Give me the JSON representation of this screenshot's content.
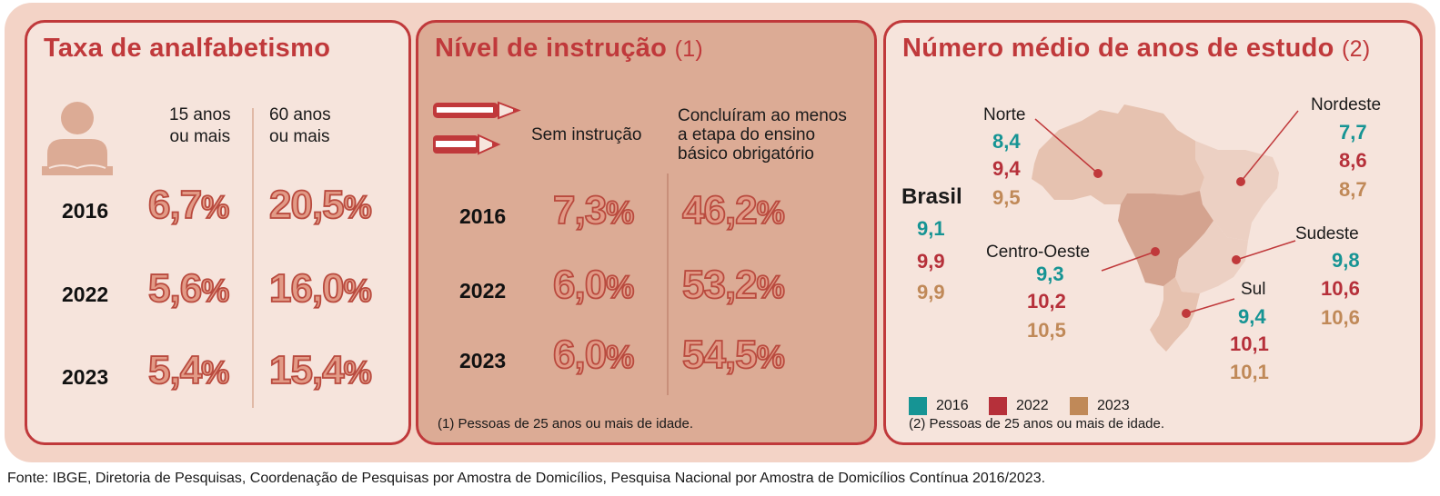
{
  "panel1": {
    "title": "Taxa de analfabetismo",
    "col1": [
      "15 anos",
      "ou mais"
    ],
    "col2": [
      "60 anos",
      "ou mais"
    ],
    "rows": [
      {
        "year": "2016",
        "v1": "6,7",
        "v2": "20,5"
      },
      {
        "year": "2022",
        "v1": "5,6",
        "v2": "16,0"
      },
      {
        "year": "2023",
        "v1": "5,4",
        "v2": "15,4"
      }
    ],
    "pct": "%"
  },
  "panel2": {
    "title": "Nível de instrução",
    "title_note": "(1)",
    "col1": "Sem instrução",
    "col2": [
      "Concluíram ao menos",
      "a etapa do ensino",
      "básico obrigatório"
    ],
    "rows": [
      {
        "year": "2016",
        "v1": "7,3",
        "v2": "46,2"
      },
      {
        "year": "2022",
        "v1": "6,0",
        "v2": "53,2"
      },
      {
        "year": "2023",
        "v1": "6,0",
        "v2": "54,5"
      }
    ],
    "pct": "%",
    "footnote": "(1) Pessoas de 25 anos ou mais de idade."
  },
  "panel3": {
    "title": "Número médio de anos de estudo",
    "title_note": "(2)",
    "brasil": {
      "label": "Brasil",
      "v2016": "9,1",
      "v2022": "9,9",
      "v2023": "9,9"
    },
    "norte": {
      "label": "Norte",
      "v2016": "8,4",
      "v2022": "9,4",
      "v2023": "9,5"
    },
    "nordeste": {
      "label": "Nordeste",
      "v2016": "7,7",
      "v2022": "8,6",
      "v2023": "8,7"
    },
    "centro_oeste": {
      "label": "Centro-Oeste",
      "v2016": "9,3",
      "v2022": "10,2",
      "v2023": "10,5"
    },
    "sudeste": {
      "label": "Sudeste",
      "v2016": "9,8",
      "v2022": "10,6",
      "v2023": "10,6"
    },
    "sul": {
      "label": "Sul",
      "v2016": "9,4",
      "v2022": "10,1",
      "v2023": "10,1"
    },
    "legend": [
      "2016",
      "2022",
      "2023"
    ],
    "footnote": "(2) Pessoas de 25 anos ou mais de idade."
  },
  "colors": {
    "c2016": "#169494",
    "c2022": "#b6303a",
    "c2023": "#c08958",
    "accent": "#c0393b"
  },
  "source": "Fonte: IBGE, Diretoria de Pesquisas, Coordenação de Pesquisas por Amostra de Domicílios, Pesquisa Nacional por Amostra de Domicílios Contínua 2016/2023."
}
